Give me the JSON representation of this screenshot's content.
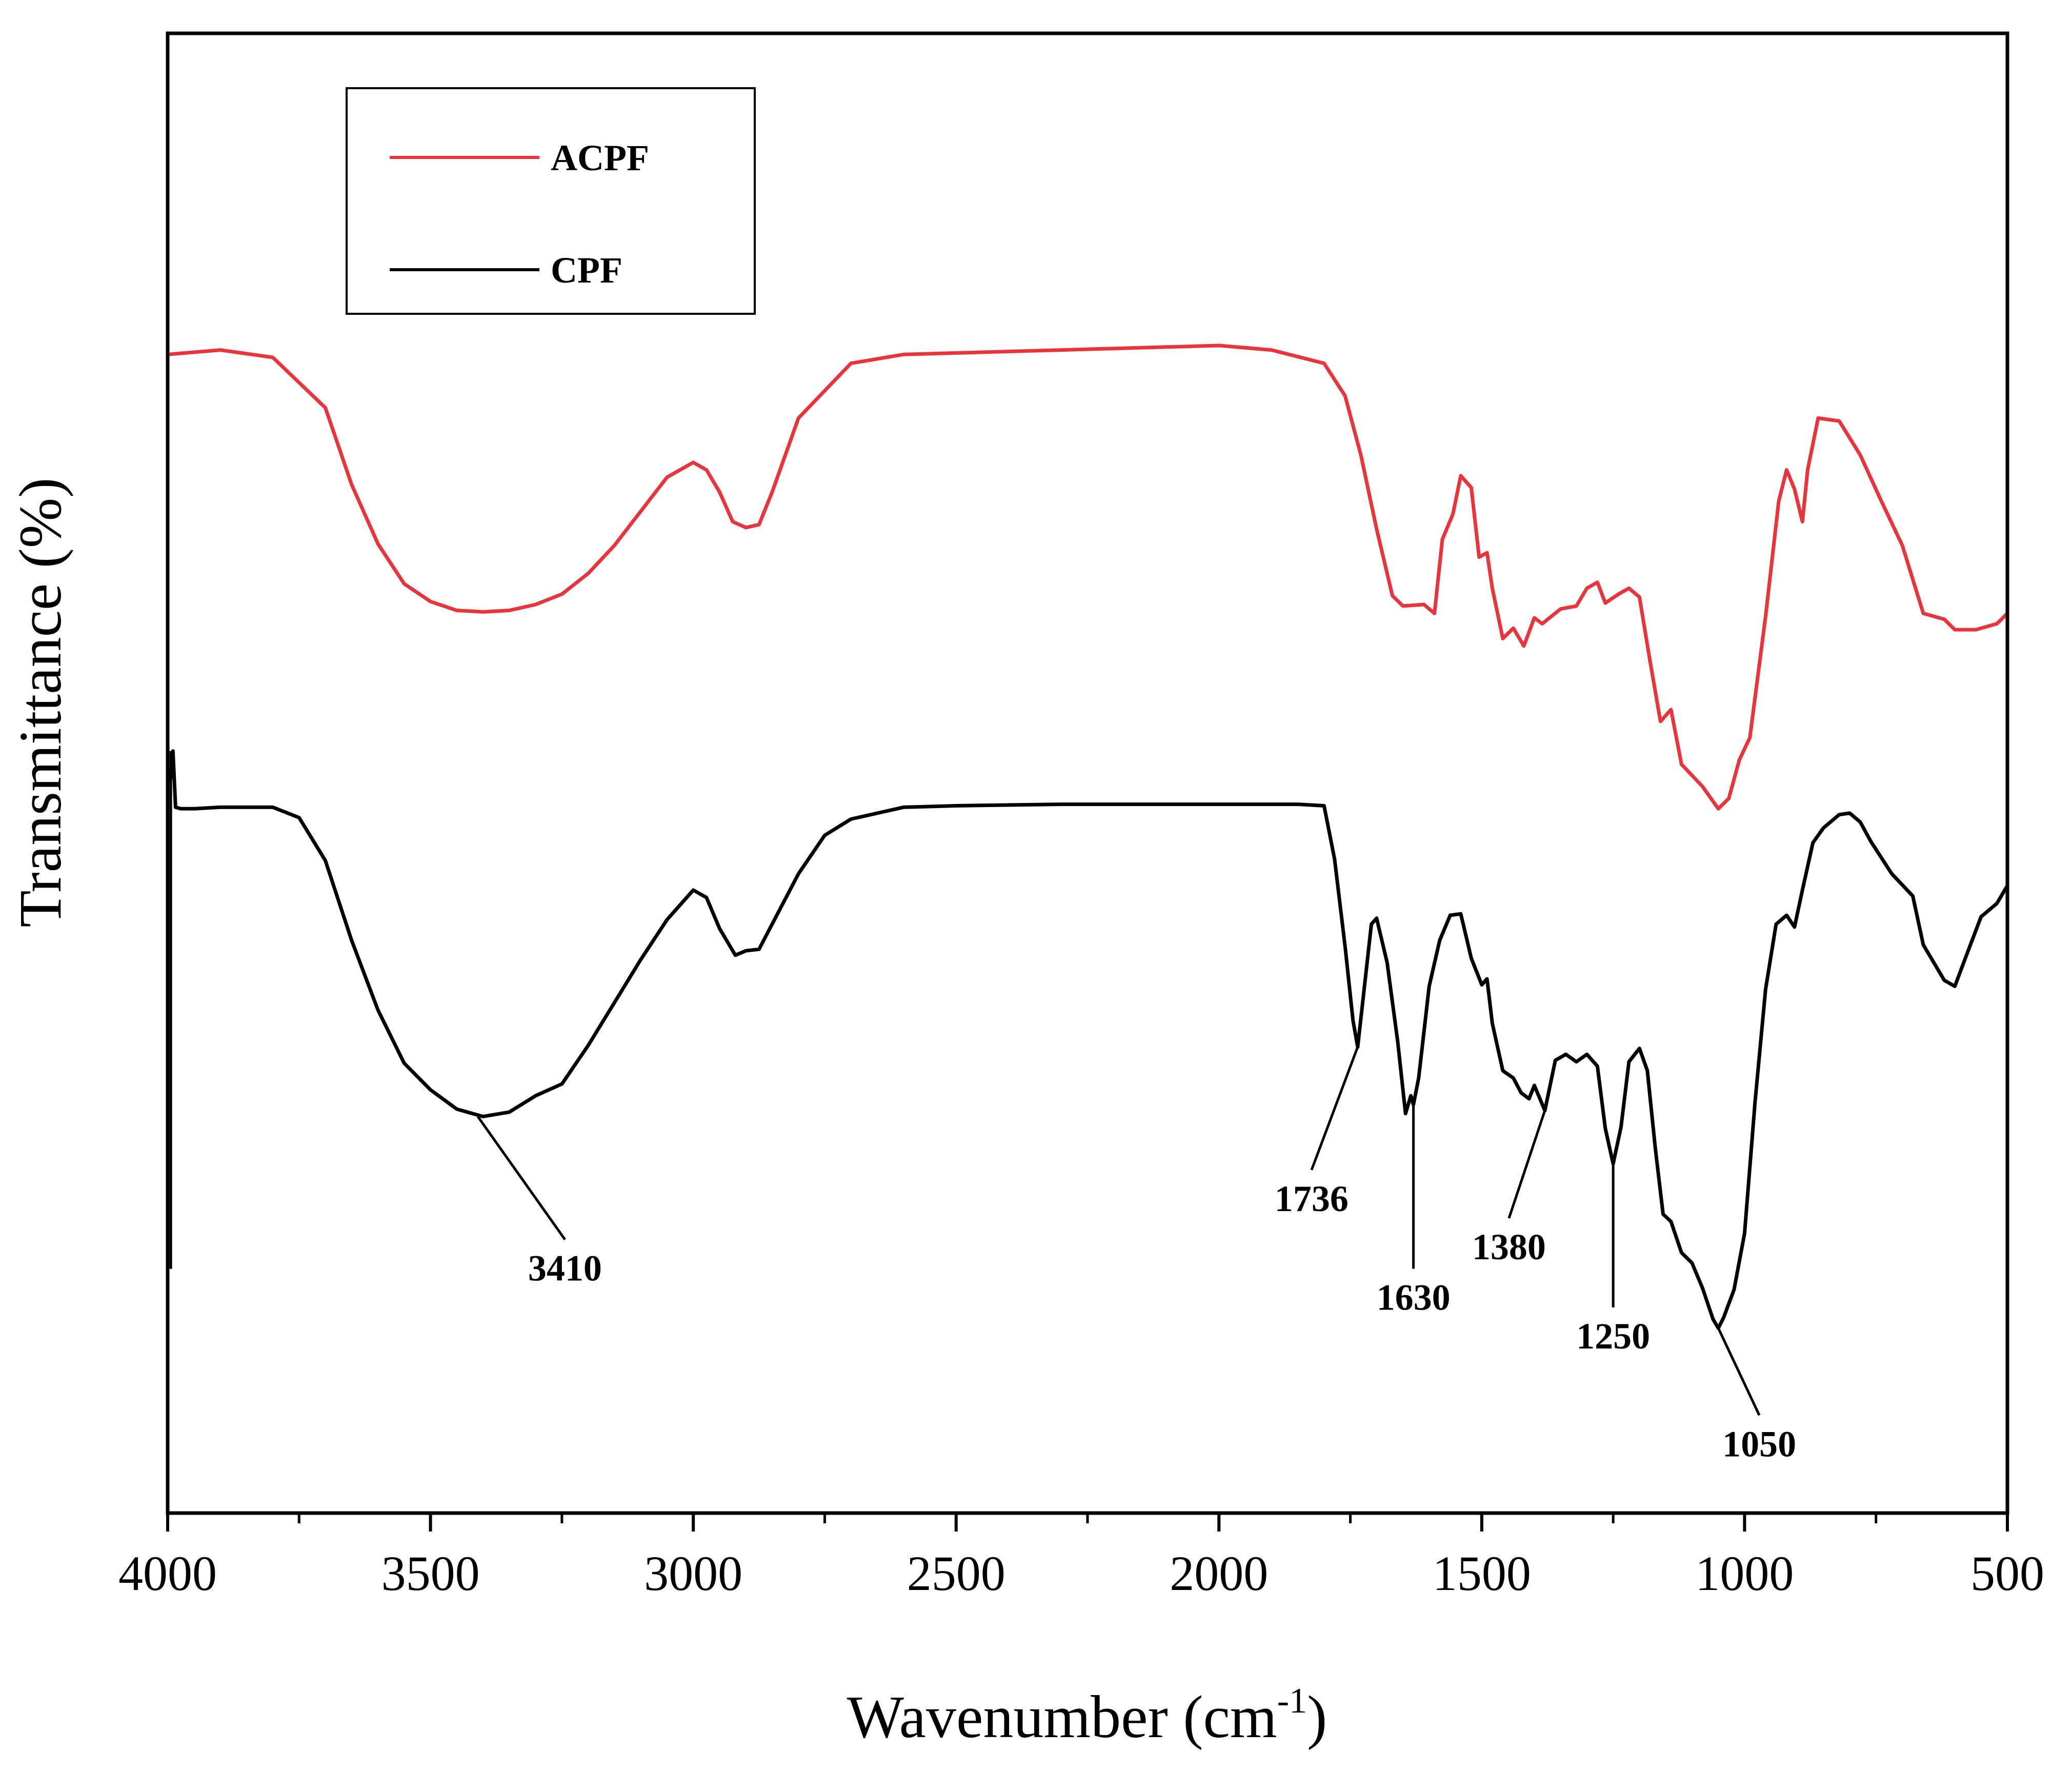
{
  "chart_data": {
    "type": "line",
    "xlabel": "Wavenumber (cm",
    "xlabel_sup": "-1",
    "xlabel_close": ")",
    "ylabel": "Transmittance (%)",
    "xlim": [
      4000,
      500
    ],
    "ylim": [
      0,
      100
    ],
    "x_ticks": [
      {
        "value": 4000,
        "label": "4000"
      },
      {
        "value": 3500,
        "label": "3500"
      },
      {
        "value": 3000,
        "label": "3000"
      },
      {
        "value": 2500,
        "label": "2500"
      },
      {
        "value": 2000,
        "label": "2000"
      },
      {
        "value": 1500,
        "label": "1500"
      },
      {
        "value": 1000,
        "label": "1000"
      },
      {
        "value": 500,
        "label": "500"
      }
    ],
    "legend": [
      {
        "name": "ACPF",
        "color": "#e8343a"
      },
      {
        "name": "CPF",
        "color": "#000000"
      }
    ],
    "series": [
      {
        "name": "ACPF",
        "color": "#e8343a",
        "points": [
          [
            4000,
            78.3
          ],
          [
            3900,
            78.6
          ],
          [
            3800,
            78.1
          ],
          [
            3700,
            74.7
          ],
          [
            3650,
            69.5
          ],
          [
            3600,
            65.5
          ],
          [
            3550,
            62.8
          ],
          [
            3500,
            61.6
          ],
          [
            3450,
            61.0
          ],
          [
            3400,
            60.9
          ],
          [
            3350,
            61.0
          ],
          [
            3300,
            61.4
          ],
          [
            3250,
            62.1
          ],
          [
            3200,
            63.5
          ],
          [
            3150,
            65.4
          ],
          [
            3100,
            67.7
          ],
          [
            3050,
            70.0
          ],
          [
            3000,
            71.0
          ],
          [
            2975,
            70.5
          ],
          [
            2950,
            69.0
          ],
          [
            2925,
            67.0
          ],
          [
            2900,
            66.6
          ],
          [
            2875,
            66.8
          ],
          [
            2850,
            69.0
          ],
          [
            2800,
            74.0
          ],
          [
            2700,
            77.7
          ],
          [
            2600,
            78.3
          ],
          [
            2500,
            78.4
          ],
          [
            2300,
            78.6
          ],
          [
            2100,
            78.8
          ],
          [
            2000,
            78.9
          ],
          [
            1900,
            78.6
          ],
          [
            1800,
            77.7
          ],
          [
            1760,
            75.5
          ],
          [
            1730,
            71.5
          ],
          [
            1700,
            66.5
          ],
          [
            1670,
            62.0
          ],
          [
            1650,
            61.3
          ],
          [
            1610,
            61.4
          ],
          [
            1590,
            60.8
          ],
          [
            1575,
            65.8
          ],
          [
            1555,
            67.5
          ],
          [
            1540,
            70.1
          ],
          [
            1520,
            69.3
          ],
          [
            1505,
            64.6
          ],
          [
            1490,
            64.9
          ],
          [
            1480,
            62.5
          ],
          [
            1460,
            59.1
          ],
          [
            1440,
            59.8
          ],
          [
            1420,
            58.6
          ],
          [
            1400,
            60.5
          ],
          [
            1385,
            60.1
          ],
          [
            1350,
            61.1
          ],
          [
            1320,
            61.3
          ],
          [
            1300,
            62.5
          ],
          [
            1280,
            62.9
          ],
          [
            1265,
            61.5
          ],
          [
            1240,
            62.1
          ],
          [
            1220,
            62.5
          ],
          [
            1200,
            61.9
          ],
          [
            1180,
            57.6
          ],
          [
            1160,
            53.5
          ],
          [
            1140,
            54.3
          ],
          [
            1120,
            50.6
          ],
          [
            1080,
            49.1
          ],
          [
            1050,
            47.6
          ],
          [
            1030,
            48.3
          ],
          [
            1010,
            50.9
          ],
          [
            990,
            52.4
          ],
          [
            960,
            60.6
          ],
          [
            935,
            68.4
          ],
          [
            920,
            70.5
          ],
          [
            905,
            69.2
          ],
          [
            890,
            67.0
          ],
          [
            880,
            70.5
          ],
          [
            860,
            74.0
          ],
          [
            820,
            73.8
          ],
          [
            780,
            71.5
          ],
          [
            740,
            68.4
          ],
          [
            700,
            65.4
          ],
          [
            660,
            60.8
          ],
          [
            620,
            60.4
          ],
          [
            600,
            59.7
          ],
          [
            560,
            59.7
          ],
          [
            520,
            60.1
          ],
          [
            500,
            60.8
          ]
        ]
      },
      {
        "name": "CPF",
        "color": "#000000",
        "points": [
          [
            3995,
            49.5
          ],
          [
            3990,
            51.5
          ],
          [
            3985,
            47.7
          ],
          [
            3975,
            47.6
          ],
          [
            3950,
            47.6
          ],
          [
            3900,
            47.7
          ],
          [
            3800,
            47.7
          ],
          [
            3750,
            47.0
          ],
          [
            3700,
            44.1
          ],
          [
            3650,
            38.7
          ],
          [
            3600,
            34.0
          ],
          [
            3550,
            30.4
          ],
          [
            3500,
            28.6
          ],
          [
            3450,
            27.3
          ],
          [
            3400,
            26.8
          ],
          [
            3350,
            27.1
          ],
          [
            3300,
            28.2
          ],
          [
            3250,
            29.0
          ],
          [
            3200,
            31.6
          ],
          [
            3150,
            34.5
          ],
          [
            3100,
            37.4
          ],
          [
            3050,
            40.1
          ],
          [
            3000,
            42.1
          ],
          [
            2975,
            41.6
          ],
          [
            2950,
            39.5
          ],
          [
            2920,
            37.7
          ],
          [
            2900,
            38.0
          ],
          [
            2875,
            38.1
          ],
          [
            2850,
            39.8
          ],
          [
            2800,
            43.2
          ],
          [
            2750,
            45.8
          ],
          [
            2700,
            46.9
          ],
          [
            2600,
            47.7
          ],
          [
            2500,
            47.8
          ],
          [
            2300,
            47.9
          ],
          [
            2100,
            47.9
          ],
          [
            2000,
            47.9
          ],
          [
            1850,
            47.9
          ],
          [
            1800,
            47.8
          ],
          [
            1780,
            44.2
          ],
          [
            1760,
            38.3
          ],
          [
            1745,
            33.3
          ],
          [
            1736,
            31.5
          ],
          [
            1725,
            35.0
          ],
          [
            1710,
            39.8
          ],
          [
            1700,
            40.2
          ],
          [
            1680,
            37.2
          ],
          [
            1660,
            31.9
          ],
          [
            1645,
            27.0
          ],
          [
            1635,
            28.2
          ],
          [
            1630,
            27.6
          ],
          [
            1620,
            29.4
          ],
          [
            1600,
            35.6
          ],
          [
            1580,
            38.7
          ],
          [
            1560,
            40.4
          ],
          [
            1540,
            40.5
          ],
          [
            1520,
            37.5
          ],
          [
            1500,
            35.7
          ],
          [
            1490,
            36.1
          ],
          [
            1480,
            33.1
          ],
          [
            1460,
            29.9
          ],
          [
            1440,
            29.4
          ],
          [
            1425,
            28.4
          ],
          [
            1410,
            28.0
          ],
          [
            1400,
            28.9
          ],
          [
            1380,
            27.2
          ],
          [
            1360,
            30.6
          ],
          [
            1340,
            31.0
          ],
          [
            1320,
            30.5
          ],
          [
            1300,
            31.0
          ],
          [
            1280,
            30.2
          ],
          [
            1265,
            26.0
          ],
          [
            1250,
            23.6
          ],
          [
            1235,
            26.1
          ],
          [
            1220,
            30.5
          ],
          [
            1200,
            31.4
          ],
          [
            1185,
            29.9
          ],
          [
            1170,
            24.7
          ],
          [
            1155,
            20.2
          ],
          [
            1140,
            19.7
          ],
          [
            1120,
            17.6
          ],
          [
            1100,
            16.9
          ],
          [
            1080,
            15.2
          ],
          [
            1060,
            13.1
          ],
          [
            1050,
            12.5
          ],
          [
            1040,
            13.2
          ],
          [
            1020,
            15.1
          ],
          [
            1000,
            18.9
          ],
          [
            980,
            27.8
          ],
          [
            960,
            35.4
          ],
          [
            940,
            39.8
          ],
          [
            920,
            40.4
          ],
          [
            905,
            39.6
          ],
          [
            890,
            42.1
          ],
          [
            870,
            45.3
          ],
          [
            850,
            46.3
          ],
          [
            820,
            47.2
          ],
          [
            800,
            47.3
          ],
          [
            780,
            46.7
          ],
          [
            760,
            45.4
          ],
          [
            720,
            43.2
          ],
          [
            680,
            41.7
          ],
          [
            660,
            38.4
          ],
          [
            640,
            37.2
          ],
          [
            620,
            36.0
          ],
          [
            600,
            35.6
          ],
          [
            580,
            37.5
          ],
          [
            550,
            40.3
          ],
          [
            520,
            41.2
          ],
          [
            500,
            42.4
          ]
        ]
      }
    ],
    "annotations": [
      {
        "label": "3410",
        "x": 3410,
        "y": 26.8
      },
      {
        "label": "1736",
        "x": 1736,
        "y": 31.5
      },
      {
        "label": "1630",
        "x": 1630,
        "y": 27.6
      },
      {
        "label": "1380",
        "x": 1380,
        "y": 27.2
      },
      {
        "label": "1250",
        "x": 1250,
        "y": 23.6
      },
      {
        "label": "1050",
        "x": 1050,
        "y": 12.5
      }
    ]
  }
}
